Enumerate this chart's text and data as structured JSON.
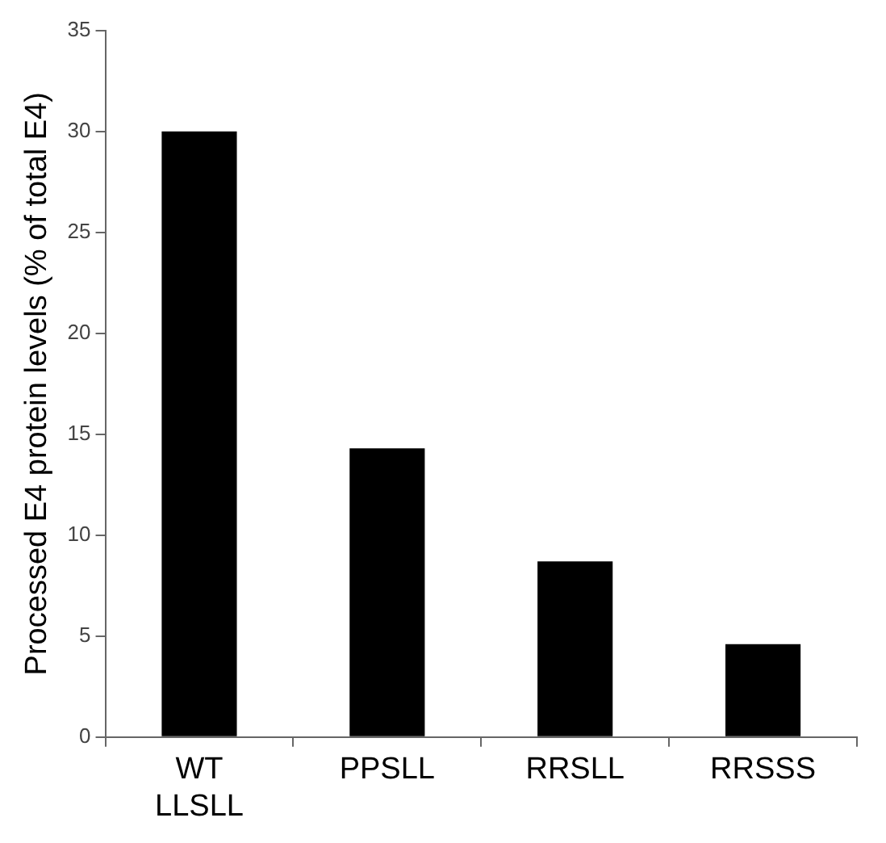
{
  "chart_data": {
    "type": "bar",
    "ylabel": "Processed E4 protein levels (% of total E4)",
    "categories": [
      "WT\nLLSLL",
      "PPSLL",
      "RRSLL",
      "RRSSS"
    ],
    "values": [
      30,
      14.3,
      8.7,
      4.6
    ],
    "color": "#000000",
    "ylim": [
      0,
      35
    ],
    "yticks": [
      0,
      5,
      10,
      15,
      20,
      25,
      30,
      35
    ],
    "grid": false,
    "legend": false
  }
}
